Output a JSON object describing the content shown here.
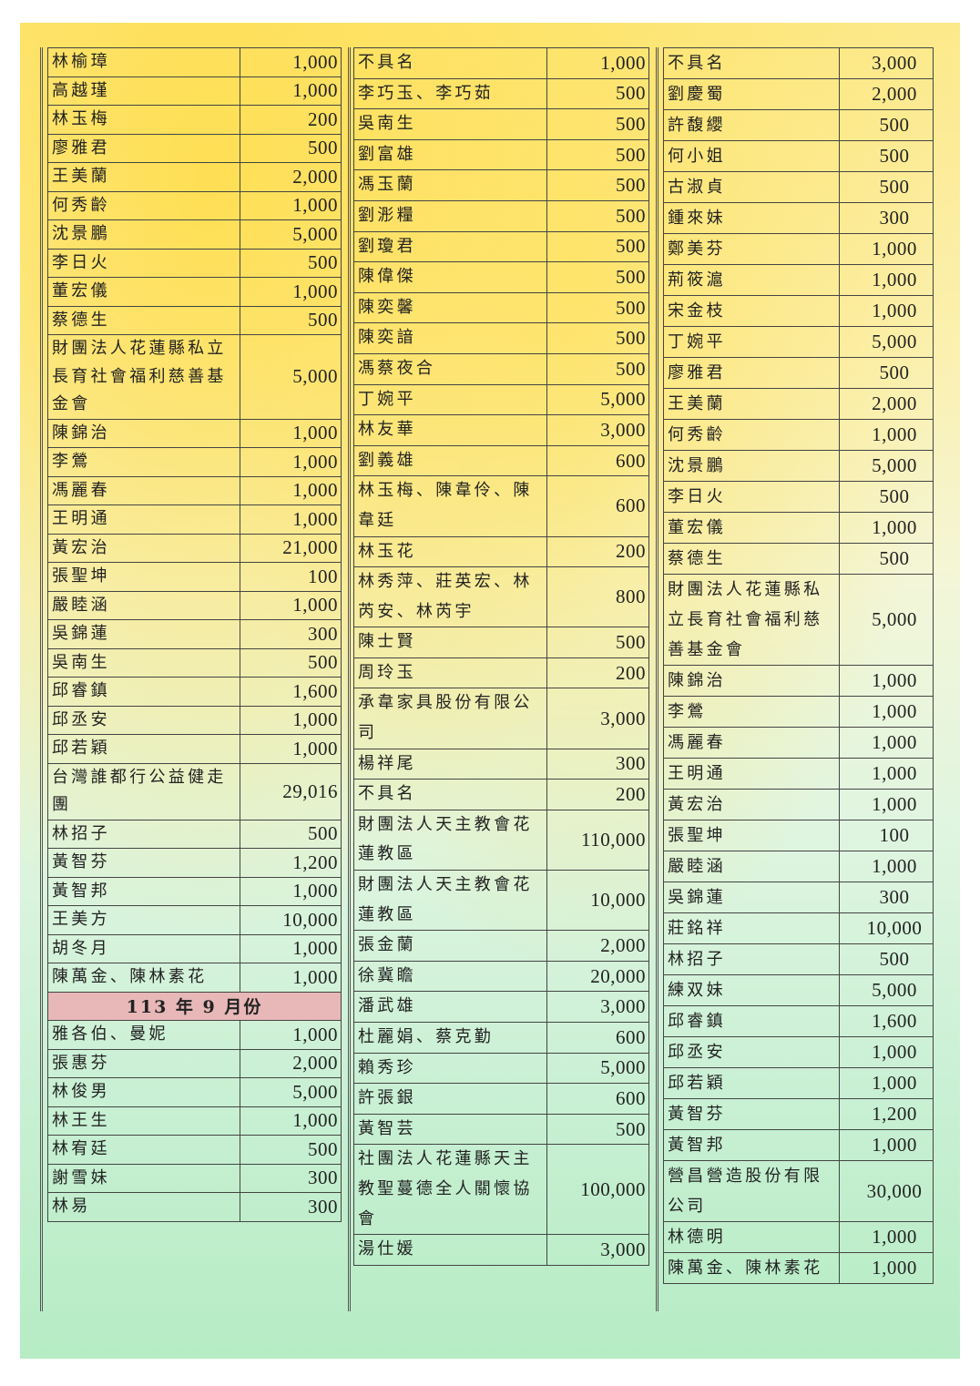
{
  "document": {
    "background_colors": {
      "top": "#fce98a",
      "bottom": "#b6ecc4",
      "section_header": "#e8b8b8"
    },
    "columns": [
      {
        "rows": [
          {
            "name": "林榆璋",
            "amount": "1,000"
          },
          {
            "name": "高越瑾",
            "amount": "1,000"
          },
          {
            "name": "林玉梅",
            "amount": "200"
          },
          {
            "name": "廖雅君",
            "amount": "500"
          },
          {
            "name": "王美蘭",
            "amount": "2,000"
          },
          {
            "name": "何秀齡",
            "amount": "1,000"
          },
          {
            "name": "沈景鵬",
            "amount": "5,000"
          },
          {
            "name": "李日火",
            "amount": "500"
          },
          {
            "name": "董宏儀",
            "amount": "1,000"
          },
          {
            "name": "蔡德生",
            "amount": "500"
          },
          {
            "name": "財團法人花蓮縣私立長育社會福利慈善基金會",
            "amount": "5,000"
          },
          {
            "name": "陳錦治",
            "amount": "1,000"
          },
          {
            "name": "李鶯",
            "amount": "1,000"
          },
          {
            "name": "馮麗春",
            "amount": "1,000"
          },
          {
            "name": "王明通",
            "amount": "1,000"
          },
          {
            "name": "黃宏治",
            "amount": "21,000"
          },
          {
            "name": "張聖坤",
            "amount": "100"
          },
          {
            "name": "嚴睦涵",
            "amount": "1,000"
          },
          {
            "name": "吳錦蓮",
            "amount": "300"
          },
          {
            "name": "吳南生",
            "amount": "500"
          },
          {
            "name": "邱睿鎮",
            "amount": "1,600"
          },
          {
            "name": "邱丞安",
            "amount": "1,000"
          },
          {
            "name": "邱若穎",
            "amount": "1,000"
          },
          {
            "name": "台灣誰都行公益健走團",
            "amount": "29,016"
          },
          {
            "name": "林招子",
            "amount": "500"
          },
          {
            "name": "黃智芬",
            "amount": "1,200"
          },
          {
            "name": "黃智邦",
            "amount": "1,000"
          },
          {
            "name": "王美方",
            "amount": "10,000"
          },
          {
            "name": "胡冬月",
            "amount": "1,000"
          },
          {
            "name": "陳萬金、陳林素花",
            "amount": "1,000"
          },
          {
            "section": "113 年 9 月份"
          },
          {
            "name": "雅各伯、曼妮",
            "amount": "1,000"
          },
          {
            "name": "張惠芬",
            "amount": "2,000"
          },
          {
            "name": "林俊男",
            "amount": "5,000"
          },
          {
            "name": "林王生",
            "amount": "1,000"
          },
          {
            "name": "林宥廷",
            "amount": "500"
          },
          {
            "name": "謝雪妹",
            "amount": "300"
          },
          {
            "name": "林易",
            "amount": "300"
          }
        ]
      },
      {
        "rows": [
          {
            "name": "不具名",
            "amount": "1,000"
          },
          {
            "name": "李巧玉、李巧茹",
            "amount": "500"
          },
          {
            "name": "吳南生",
            "amount": "500"
          },
          {
            "name": "劉富雄",
            "amount": "500"
          },
          {
            "name": "馮玉蘭",
            "amount": "500"
          },
          {
            "name": "劉浵糧",
            "amount": "500"
          },
          {
            "name": "劉瓊君",
            "amount": "500"
          },
          {
            "name": "陳偉傑",
            "amount": "500"
          },
          {
            "name": "陳奕馨",
            "amount": "500"
          },
          {
            "name": "陳奕諳",
            "amount": "500"
          },
          {
            "name": "馮蔡夜合",
            "amount": "500"
          },
          {
            "name": "丁婉平",
            "amount": "5,000"
          },
          {
            "name": "林友華",
            "amount": "3,000"
          },
          {
            "name": "劉義雄",
            "amount": "600"
          },
          {
            "name": "林玉梅、陳韋伶、陳韋廷",
            "amount": "600"
          },
          {
            "name": "林玉花",
            "amount": "200"
          },
          {
            "name": "林秀萍、莊英宏、林芮安、林芮宇",
            "amount": "800"
          },
          {
            "name": "陳士賢",
            "amount": "500"
          },
          {
            "name": "周玲玉",
            "amount": "200"
          },
          {
            "name": "承韋家具股份有限公司",
            "amount": "3,000"
          },
          {
            "name": "楊祥尾",
            "amount": "300"
          },
          {
            "name": "不具名",
            "amount": "200"
          },
          {
            "name": "財團法人天主教會花蓮教區",
            "amount": "110,000"
          },
          {
            "name": "財團法人天主教會花蓮教區",
            "amount": "10,000"
          },
          {
            "name": "張金蘭",
            "amount": "2,000"
          },
          {
            "name": "徐冀瞻",
            "amount": "20,000"
          },
          {
            "name": "潘武雄",
            "amount": "3,000"
          },
          {
            "name": "杜麗娟、蔡克勤",
            "amount": "600"
          },
          {
            "name": "賴秀珍",
            "amount": "5,000"
          },
          {
            "name": "許張銀",
            "amount": "600"
          },
          {
            "name": "黃智芸",
            "amount": "500"
          },
          {
            "name": "社團法人花蓮縣天主教聖蔓德全人關懷協會",
            "amount": "100,000"
          },
          {
            "name": "湯仕媛",
            "amount": "3,000"
          }
        ]
      },
      {
        "rows": [
          {
            "name": "不具名",
            "amount": "3,000"
          },
          {
            "name": "劉慶蜀",
            "amount": "2,000"
          },
          {
            "name": "許馥纓",
            "amount": "500"
          },
          {
            "name": "何小姐",
            "amount": "500"
          },
          {
            "name": "古淑貞",
            "amount": "500"
          },
          {
            "name": "鍾來妹",
            "amount": "300"
          },
          {
            "name": "鄭美芬",
            "amount": "1,000"
          },
          {
            "name": "荊筱滬",
            "amount": "1,000"
          },
          {
            "name": "宋金枝",
            "amount": "1,000"
          },
          {
            "name": "丁婉平",
            "amount": "5,000"
          },
          {
            "name": "廖雅君",
            "amount": "500"
          },
          {
            "name": "王美蘭",
            "amount": "2,000"
          },
          {
            "name": "何秀齡",
            "amount": "1,000"
          },
          {
            "name": "沈景鵬",
            "amount": "5,000"
          },
          {
            "name": "李日火",
            "amount": "500"
          },
          {
            "name": "董宏儀",
            "amount": "1,000"
          },
          {
            "name": "蔡德生",
            "amount": "500"
          },
          {
            "name": "財團法人花蓮縣私立長育社會福利慈善基金會",
            "amount": "5,000"
          },
          {
            "name": "陳錦治",
            "amount": "1,000"
          },
          {
            "name": "李鶯",
            "amount": "1,000"
          },
          {
            "name": "馮麗春",
            "amount": "1,000"
          },
          {
            "name": "王明通",
            "amount": "1,000"
          },
          {
            "name": "黃宏治",
            "amount": "1,000"
          },
          {
            "name": "張聖坤",
            "amount": "100"
          },
          {
            "name": "嚴睦涵",
            "amount": "1,000"
          },
          {
            "name": "吳錦蓮",
            "amount": "300"
          },
          {
            "name": "莊銘祥",
            "amount": "10,000"
          },
          {
            "name": "林招子",
            "amount": "500"
          },
          {
            "name": "練双妹",
            "amount": "5,000"
          },
          {
            "name": "邱睿鎮",
            "amount": "1,600"
          },
          {
            "name": "邱丞安",
            "amount": "1,000"
          },
          {
            "name": "邱若穎",
            "amount": "1,000"
          },
          {
            "name": "黃智芬",
            "amount": "1,200"
          },
          {
            "name": "黃智邦",
            "amount": "1,000"
          },
          {
            "name": "營昌營造股份有限公司",
            "amount": "30,000"
          },
          {
            "name": "林德明",
            "amount": "1,000"
          },
          {
            "name": "陳萬金、陳林素花",
            "amount": "1,000"
          }
        ]
      }
    ]
  }
}
